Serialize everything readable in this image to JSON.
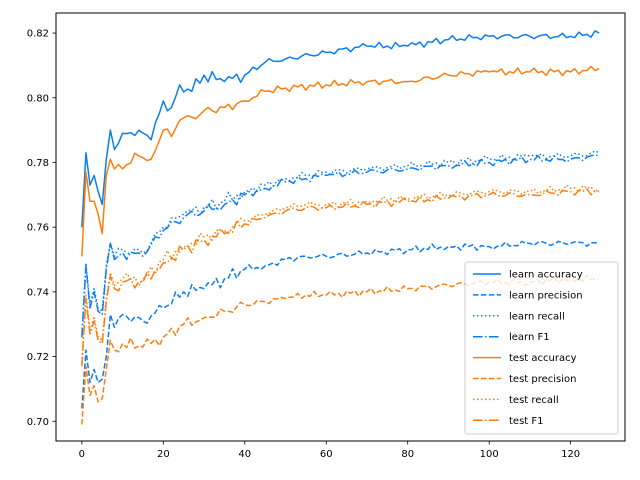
{
  "chart_data": {
    "type": "line",
    "title": "",
    "xlabel": "",
    "ylabel": "",
    "xlim": [
      -6.35,
      133.35
    ],
    "ylim": [
      0.6939,
      0.8262
    ],
    "xticks": [
      0,
      20,
      40,
      60,
      80,
      100,
      120
    ],
    "yticks": [
      0.7,
      0.72,
      0.74,
      0.76,
      0.78,
      0.8,
      0.82
    ],
    "ytick_labels": [
      "0.70",
      "0.72",
      "0.74",
      "0.76",
      "0.78",
      "0.80",
      "0.82"
    ],
    "grid": false,
    "legend_position": "lower right",
    "colors": {
      "learn": "#0a7ef0",
      "test": "#fd7e0e"
    },
    "x_range": [
      0,
      127
    ],
    "series": [
      {
        "name": "learn accuracy",
        "group": "learn",
        "style": "solid",
        "keypoints": [
          [
            0,
            0.76
          ],
          [
            1,
            0.783
          ],
          [
            2,
            0.773
          ],
          [
            3,
            0.776
          ],
          [
            4,
            0.771
          ],
          [
            5,
            0.767
          ],
          [
            6,
            0.781
          ],
          [
            7,
            0.79
          ],
          [
            8,
            0.784
          ],
          [
            10,
            0.789
          ],
          [
            14,
            0.79
          ],
          [
            17,
            0.787
          ],
          [
            20,
            0.799
          ],
          [
            22,
            0.797
          ],
          [
            24,
            0.804
          ],
          [
            27,
            0.802
          ],
          [
            30,
            0.807
          ],
          [
            35,
            0.805
          ],
          [
            40,
            0.807
          ],
          [
            45,
            0.811
          ],
          [
            50,
            0.812
          ],
          [
            60,
            0.814
          ],
          [
            70,
            0.816
          ],
          [
            80,
            0.816
          ],
          [
            90,
            0.818
          ],
          [
            100,
            0.819
          ],
          [
            110,
            0.819
          ],
          [
            120,
            0.819
          ],
          [
            127,
            0.82
          ]
        ]
      },
      {
        "name": "learn precision",
        "group": "learn",
        "style": "dashed",
        "keypoints": [
          [
            0,
            0.704
          ],
          [
            1,
            0.722
          ],
          [
            2,
            0.712
          ],
          [
            3,
            0.716
          ],
          [
            4,
            0.712
          ],
          [
            5,
            0.713
          ],
          [
            6,
            0.72
          ],
          [
            7,
            0.733
          ],
          [
            8,
            0.729
          ],
          [
            10,
            0.733
          ],
          [
            15,
            0.731
          ],
          [
            20,
            0.735
          ],
          [
            25,
            0.74
          ],
          [
            30,
            0.741
          ],
          [
            35,
            0.744
          ],
          [
            40,
            0.747
          ],
          [
            45,
            0.748
          ],
          [
            50,
            0.75
          ],
          [
            55,
            0.751
          ],
          [
            60,
            0.751
          ],
          [
            70,
            0.752
          ],
          [
            80,
            0.753
          ],
          [
            90,
            0.754
          ],
          [
            100,
            0.754
          ],
          [
            110,
            0.755
          ],
          [
            120,
            0.755
          ],
          [
            127,
            0.755
          ]
        ]
      },
      {
        "name": "learn recall",
        "group": "learn",
        "style": "dotted",
        "keypoints": [
          [
            0,
            0.726
          ],
          [
            1,
            0.749
          ],
          [
            2,
            0.736
          ],
          [
            3,
            0.741
          ],
          [
            4,
            0.735
          ],
          [
            5,
            0.734
          ],
          [
            6,
            0.748
          ],
          [
            7,
            0.755
          ],
          [
            8,
            0.751
          ],
          [
            10,
            0.753
          ],
          [
            15,
            0.752
          ],
          [
            20,
            0.76
          ],
          [
            25,
            0.764
          ],
          [
            30,
            0.766
          ],
          [
            35,
            0.768
          ],
          [
            40,
            0.771
          ],
          [
            45,
            0.773
          ],
          [
            50,
            0.775
          ],
          [
            55,
            0.776
          ],
          [
            60,
            0.777
          ],
          [
            70,
            0.778
          ],
          [
            80,
            0.779
          ],
          [
            90,
            0.78
          ],
          [
            100,
            0.781
          ],
          [
            110,
            0.782
          ],
          [
            120,
            0.782
          ],
          [
            127,
            0.783
          ]
        ]
      },
      {
        "name": "learn F1",
        "group": "learn",
        "style": "dashdot",
        "keypoints": [
          [
            0,
            0.726
          ],
          [
            1,
            0.748
          ],
          [
            2,
            0.735
          ],
          [
            3,
            0.74
          ],
          [
            4,
            0.734
          ],
          [
            5,
            0.733
          ],
          [
            6,
            0.747
          ],
          [
            7,
            0.755
          ],
          [
            8,
            0.75
          ],
          [
            10,
            0.752
          ],
          [
            15,
            0.751
          ],
          [
            20,
            0.759
          ],
          [
            25,
            0.763
          ],
          [
            30,
            0.765
          ],
          [
            35,
            0.767
          ],
          [
            40,
            0.77
          ],
          [
            45,
            0.772
          ],
          [
            50,
            0.774
          ],
          [
            55,
            0.775
          ],
          [
            60,
            0.776
          ],
          [
            70,
            0.777
          ],
          [
            80,
            0.778
          ],
          [
            90,
            0.779
          ],
          [
            100,
            0.78
          ],
          [
            110,
            0.781
          ],
          [
            120,
            0.781
          ],
          [
            127,
            0.782
          ]
        ]
      },
      {
        "name": "test accuracy",
        "group": "test",
        "style": "solid",
        "keypoints": [
          [
            0,
            0.751
          ],
          [
            1,
            0.777
          ],
          [
            2,
            0.768
          ],
          [
            3,
            0.768
          ],
          [
            4,
            0.764
          ],
          [
            5,
            0.758
          ],
          [
            6,
            0.776
          ],
          [
            7,
            0.781
          ],
          [
            8,
            0.778
          ],
          [
            10,
            0.778
          ],
          [
            14,
            0.782
          ],
          [
            17,
            0.781
          ],
          [
            20,
            0.79
          ],
          [
            22,
            0.788
          ],
          [
            24,
            0.793
          ],
          [
            27,
            0.794
          ],
          [
            30,
            0.796
          ],
          [
            35,
            0.797
          ],
          [
            40,
            0.799
          ],
          [
            45,
            0.802
          ],
          [
            50,
            0.803
          ],
          [
            60,
            0.804
          ],
          [
            70,
            0.805
          ],
          [
            80,
            0.805
          ],
          [
            90,
            0.807
          ],
          [
            100,
            0.808
          ],
          [
            110,
            0.808
          ],
          [
            120,
            0.808
          ],
          [
            127,
            0.809
          ]
        ]
      },
      {
        "name": "test precision",
        "group": "test",
        "style": "dashed",
        "keypoints": [
          [
            0,
            0.699
          ],
          [
            1,
            0.717
          ],
          [
            2,
            0.708
          ],
          [
            3,
            0.711
          ],
          [
            4,
            0.706
          ],
          [
            5,
            0.707
          ],
          [
            6,
            0.716
          ],
          [
            7,
            0.725
          ],
          [
            8,
            0.722
          ],
          [
            10,
            0.724
          ],
          [
            15,
            0.723
          ],
          [
            20,
            0.726
          ],
          [
            25,
            0.73
          ],
          [
            30,
            0.732
          ],
          [
            35,
            0.734
          ],
          [
            40,
            0.736
          ],
          [
            45,
            0.737
          ],
          [
            50,
            0.738
          ],
          [
            55,
            0.739
          ],
          [
            60,
            0.739
          ],
          [
            70,
            0.74
          ],
          [
            80,
            0.741
          ],
          [
            90,
            0.742
          ],
          [
            100,
            0.743
          ],
          [
            110,
            0.743
          ],
          [
            120,
            0.744
          ],
          [
            127,
            0.744
          ]
        ]
      },
      {
        "name": "test recall",
        "group": "test",
        "style": "dotted",
        "keypoints": [
          [
            0,
            0.718
          ],
          [
            1,
            0.739
          ],
          [
            2,
            0.728
          ],
          [
            3,
            0.732
          ],
          [
            4,
            0.726
          ],
          [
            5,
            0.725
          ],
          [
            6,
            0.738
          ],
          [
            7,
            0.746
          ],
          [
            8,
            0.742
          ],
          [
            10,
            0.744
          ],
          [
            15,
            0.744
          ],
          [
            20,
            0.75
          ],
          [
            25,
            0.754
          ],
          [
            30,
            0.757
          ],
          [
            35,
            0.759
          ],
          [
            40,
            0.762
          ],
          [
            45,
            0.764
          ],
          [
            50,
            0.766
          ],
          [
            55,
            0.767
          ],
          [
            60,
            0.767
          ],
          [
            70,
            0.768
          ],
          [
            80,
            0.769
          ],
          [
            90,
            0.77
          ],
          [
            100,
            0.771
          ],
          [
            110,
            0.771
          ],
          [
            120,
            0.772
          ],
          [
            127,
            0.772
          ]
        ]
      },
      {
        "name": "test F1",
        "group": "test",
        "style": "dashdot",
        "keypoints": [
          [
            0,
            0.717
          ],
          [
            1,
            0.738
          ],
          [
            2,
            0.727
          ],
          [
            3,
            0.731
          ],
          [
            4,
            0.725
          ],
          [
            5,
            0.724
          ],
          [
            6,
            0.737
          ],
          [
            7,
            0.745
          ],
          [
            8,
            0.741
          ],
          [
            10,
            0.743
          ],
          [
            15,
            0.743
          ],
          [
            20,
            0.749
          ],
          [
            25,
            0.753
          ],
          [
            30,
            0.756
          ],
          [
            35,
            0.758
          ],
          [
            40,
            0.761
          ],
          [
            45,
            0.763
          ],
          [
            50,
            0.765
          ],
          [
            55,
            0.766
          ],
          [
            60,
            0.766
          ],
          [
            70,
            0.767
          ],
          [
            80,
            0.768
          ],
          [
            90,
            0.769
          ],
          [
            100,
            0.77
          ],
          [
            110,
            0.77
          ],
          [
            120,
            0.771
          ],
          [
            127,
            0.771
          ]
        ]
      }
    ]
  }
}
